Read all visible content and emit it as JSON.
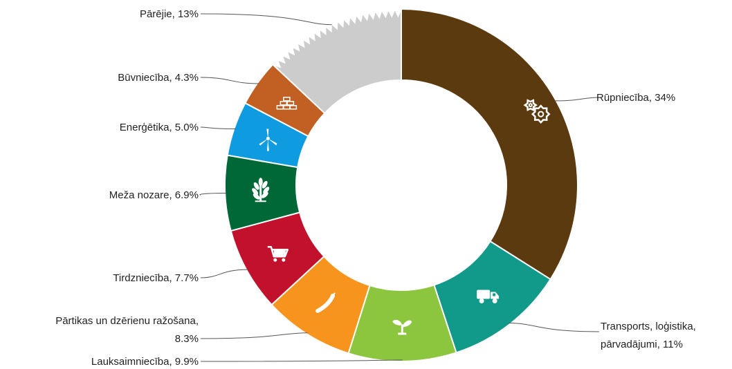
{
  "chart_data": {
    "type": "pie",
    "variant": "donut",
    "start": "top",
    "direction": "clockwise",
    "grid": false,
    "legend": "none",
    "slices": [
      {
        "label": "Rūpniecība, 34%",
        "value": 34,
        "color": "#5c3a10",
        "icon": "gears-icon"
      },
      {
        "label": "Transports, loģistika, pārvadājumi, 11%",
        "label_lines": [
          "Transports, loģistika,",
          "pārvadājumi, 11%"
        ],
        "value": 11,
        "color": "#119a8a",
        "icon": "truck-icon"
      },
      {
        "label": "Lauksaimniecība, 9.9%",
        "value": 9.9,
        "color": "#8cc63f",
        "icon": "sprout-icon"
      },
      {
        "label": "Pārtikas un dzērienu ražošana, 8.3%",
        "label_lines": [
          "Pārtikas un dzērienu ražošana,",
          "8.3%"
        ],
        "value": 8.3,
        "color": "#f7941d",
        "icon": "sausage-icon"
      },
      {
        "label": "Tirdzniecība, 7.7%",
        "value": 7.7,
        "color": "#c1112d",
        "icon": "shopping-cart-icon"
      },
      {
        "label": "Meža nozare, 6.9%",
        "value": 6.9,
        "color": "#006837",
        "icon": "tree-icon"
      },
      {
        "label": "Enerģētika, 5.0%",
        "value": 5.0,
        "color": "#0f9be0",
        "icon": "wind-turbine-icon"
      },
      {
        "label": "Būvniecība, 4.3%",
        "value": 4.3,
        "color": "#c25f22",
        "icon": "bricks-icon"
      },
      {
        "label": "Pārējie, 13%",
        "value": 13,
        "color": "#cccccc",
        "icon": ""
      }
    ]
  }
}
